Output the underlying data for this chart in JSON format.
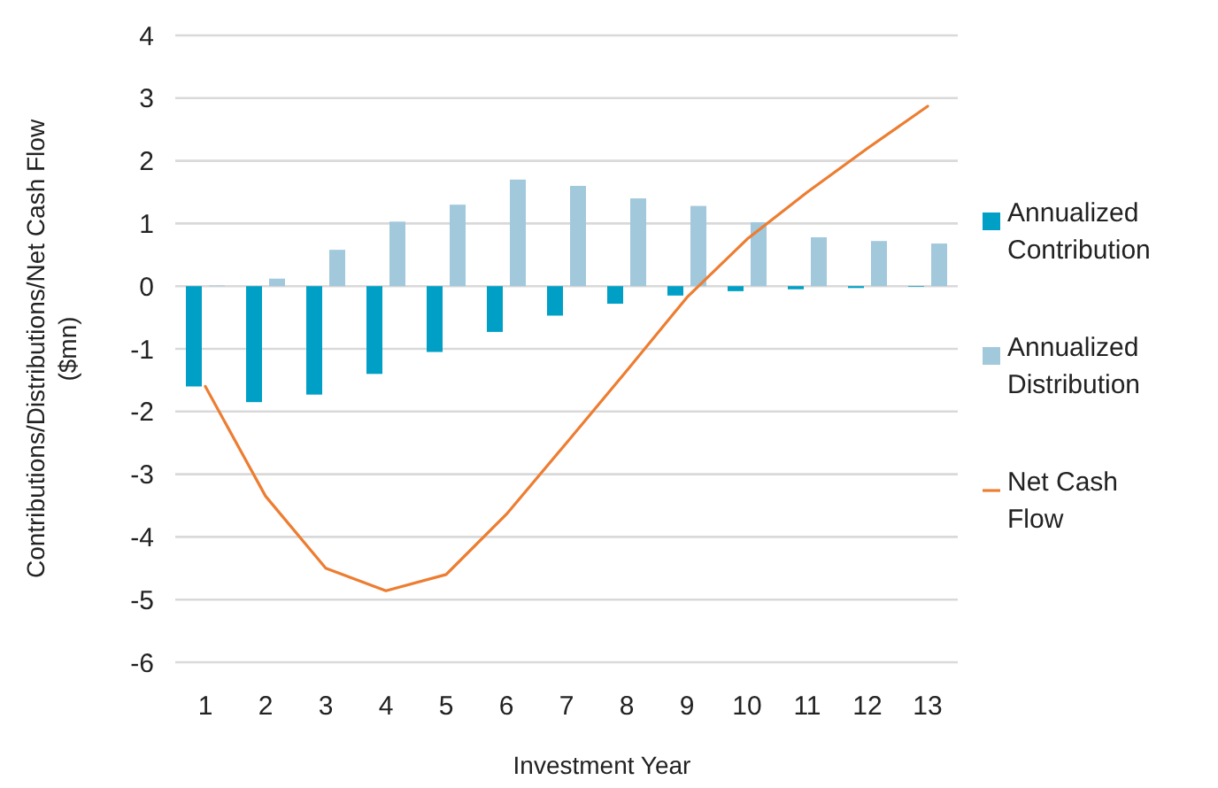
{
  "chart_data": {
    "type": "bar",
    "xlabel": "Investment Year",
    "ylabel": "Contributions/Distributions/Net Cash Flow ($mn)",
    "categories": [
      "1",
      "2",
      "3",
      "4",
      "5",
      "6",
      "7",
      "8",
      "9",
      "10",
      "11",
      "12",
      "13"
    ],
    "series": [
      {
        "name": "Annualized Contribution",
        "color": "#00a0c6",
        "values": [
          -1.6,
          -1.85,
          -1.73,
          -1.4,
          -1.05,
          -0.73,
          -0.47,
          -0.28,
          -0.15,
          -0.08,
          -0.05,
          -0.03,
          -0.01
        ]
      },
      {
        "name": "Annualized Distribution",
        "color": "#a2c8dc",
        "values": [
          0.01,
          0.12,
          0.58,
          1.03,
          1.3,
          1.7,
          1.6,
          1.4,
          1.28,
          1.02,
          0.78,
          0.72,
          0.68
        ]
      },
      {
        "name": "Net Cash Flow",
        "type": "line",
        "color": "#ed7d31",
        "values": [
          -1.6,
          -3.35,
          -4.5,
          -4.86,
          -4.6,
          -3.64,
          -2.5,
          -1.35,
          -0.18,
          0.75,
          1.5,
          2.2,
          2.87
        ]
      }
    ],
    "ylim": [
      -6,
      4
    ],
    "yticks": [
      -6,
      -5,
      -4,
      -3,
      -2,
      -1,
      0,
      1,
      2,
      3,
      4
    ],
    "grid": "y",
    "legend": "right"
  }
}
